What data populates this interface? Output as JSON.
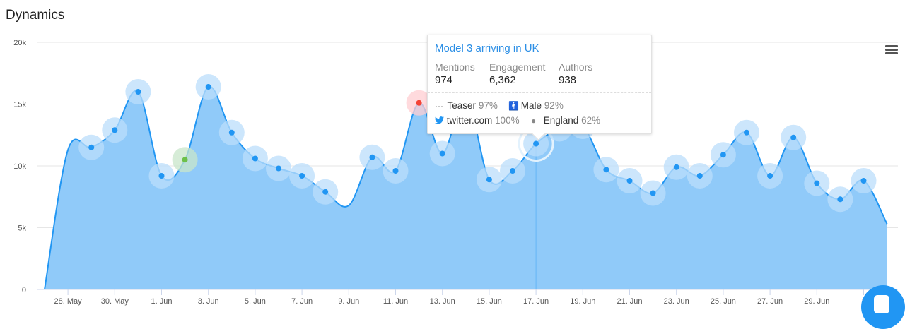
{
  "title": "Dynamics",
  "menu_icon": "hamburger-icon",
  "colors": {
    "line": "#2196f3",
    "area": "#90caf9",
    "bubble": "#bbdefb",
    "positive": "#6cc04a",
    "negative": "#f44336"
  },
  "chart_data": {
    "type": "area",
    "title": "",
    "xlabel": "",
    "ylabel": "",
    "ylim": [
      0,
      20000
    ],
    "yticks": [
      "0",
      "5k",
      "10k",
      "15k",
      "20k"
    ],
    "grid": true,
    "xtick_labels": [
      "28. May",
      "30. May",
      "1. Jun",
      "3. Jun",
      "5. Jun",
      "7. Jun",
      "9. Jun",
      "11. Jun",
      "13. Jun",
      "15. Jun",
      "17. Jun",
      "19. Jun",
      "21. Jun",
      "23. Jun",
      "25. Jun",
      "27. Jun",
      "29. Jun",
      "1"
    ],
    "x": [
      "27 May",
      "28 May",
      "29 May",
      "30 May",
      "31 May",
      "1 Jun",
      "2 Jun",
      "3 Jun",
      "4 Jun",
      "5 Jun",
      "6 Jun",
      "7 Jun",
      "8 Jun",
      "9 Jun",
      "10 Jun",
      "11 Jun",
      "12 Jun",
      "13 Jun",
      "14 Jun",
      "15 Jun",
      "16 Jun",
      "17 Jun",
      "18 Jun",
      "19 Jun",
      "20 Jun",
      "21 Jun",
      "22 Jun",
      "23 Jun",
      "24 Jun",
      "25 Jun",
      "26 Jun",
      "27 Jun",
      "28 Jun",
      "29 Jun",
      "30 Jun",
      "1 Jul",
      "2 Jul"
    ],
    "values": [
      0,
      11300,
      11500,
      12900,
      16000,
      9200,
      10500,
      16400,
      12700,
      10600,
      9800,
      9200,
      7900,
      6800,
      10700,
      9600,
      15100,
      11000,
      15600,
      8900,
      9600,
      11800,
      13000,
      13200,
      9700,
      8800,
      7800,
      9900,
      9200,
      10900,
      12700,
      9200,
      12300,
      8600,
      7300,
      8800,
      5300
    ],
    "highlighted": {
      "positive": "2 Jun",
      "negative": "12 Jun",
      "hovered": "17 Jun"
    }
  },
  "tooltip": {
    "title": "Model 3 arriving in UK",
    "mentions_label": "Mentions",
    "mentions": "974",
    "engagement_label": "Engagement",
    "engagement": "6,362",
    "authors_label": "Authors",
    "authors": "938",
    "category": "Teaser",
    "category_pct": "97%",
    "gender": "Male",
    "gender_pct": "92%",
    "source": "twitter.com",
    "source_pct": "100%",
    "location": "England",
    "location_pct": "62%"
  }
}
